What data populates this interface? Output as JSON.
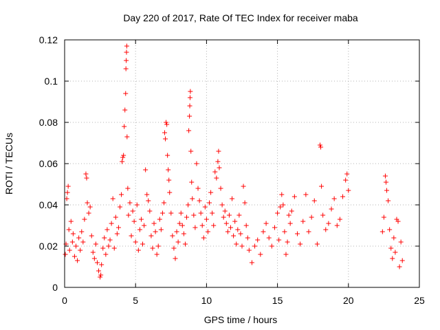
{
  "chart_data": {
    "type": "scatter",
    "title": "Day 220 of 2017, Rate Of TEC Index for receiver maba",
    "xlabel": "GPS time / hours",
    "ylabel": "ROTI / TECUs",
    "xlim": [
      0,
      25
    ],
    "ylim": [
      0,
      0.12
    ],
    "xticks": [
      "0",
      "5",
      "10",
      "15",
      "20",
      "25"
    ],
    "yticks": [
      "0",
      "0.02",
      "0.04",
      "0.06",
      "0.08",
      "0.1",
      "0.12"
    ],
    "grid": true,
    "marker": "+",
    "marker_color": "#ff0000",
    "series": [
      {
        "points": [
          [
            0.05,
            0.016
          ],
          [
            0.1,
            0.021
          ],
          [
            0.15,
            0.043
          ],
          [
            0.2,
            0.046
          ],
          [
            0.25,
            0.049
          ],
          [
            0.3,
            0.028
          ],
          [
            0.35,
            0.018
          ],
          [
            0.45,
            0.032
          ],
          [
            0.55,
            0.022
          ],
          [
            0.6,
            0.026
          ],
          [
            0.7,
            0.015
          ],
          [
            0.8,
            0.02
          ],
          [
            0.9,
            0.013
          ],
          [
            1.0,
            0.024
          ],
          [
            1.1,
            0.018
          ],
          [
            1.2,
            0.027
          ],
          [
            1.3,
            0.022
          ],
          [
            1.4,
            0.033
          ],
          [
            1.5,
            0.055
          ],
          [
            1.55,
            0.053
          ],
          [
            1.6,
            0.041
          ],
          [
            1.7,
            0.036
          ],
          [
            1.8,
            0.039
          ],
          [
            1.9,
            0.025
          ],
          [
            2.0,
            0.017
          ],
          [
            2.1,
            0.014
          ],
          [
            2.2,
            0.021
          ],
          [
            2.3,
            0.012
          ],
          [
            2.4,
            0.008
          ],
          [
            2.5,
            0.005
          ],
          [
            2.55,
            0.006
          ],
          [
            2.6,
            0.011
          ],
          [
            2.7,
            0.019
          ],
          [
            2.8,
            0.024
          ],
          [
            2.9,
            0.016
          ],
          [
            3.0,
            0.028
          ],
          [
            3.1,
            0.02
          ],
          [
            3.2,
            0.023
          ],
          [
            3.3,
            0.031
          ],
          [
            3.4,
            0.043
          ],
          [
            3.5,
            0.019
          ],
          [
            3.6,
            0.034
          ],
          [
            3.7,
            0.026
          ],
          [
            3.8,
            0.029
          ],
          [
            3.9,
            0.039
          ],
          [
            4.0,
            0.045
          ],
          [
            4.05,
            0.061
          ],
          [
            4.1,
            0.063
          ],
          [
            4.15,
            0.064
          ],
          [
            4.2,
            0.078
          ],
          [
            4.25,
            0.086
          ],
          [
            4.3,
            0.094
          ],
          [
            4.32,
            0.106
          ],
          [
            4.34,
            0.11
          ],
          [
            4.36,
            0.114
          ],
          [
            4.38,
            0.117
          ],
          [
            4.4,
            0.073
          ],
          [
            4.45,
            0.048
          ],
          [
            4.5,
            0.035
          ],
          [
            4.6,
            0.041
          ],
          [
            4.7,
            0.025
          ],
          [
            4.8,
            0.037
          ],
          [
            4.9,
            0.032
          ],
          [
            5.0,
            0.022
          ],
          [
            5.1,
            0.04
          ],
          [
            5.2,
            0.018
          ],
          [
            5.3,
            0.028
          ],
          [
            5.4,
            0.033
          ],
          [
            5.5,
            0.021
          ],
          [
            5.6,
            0.03
          ],
          [
            5.7,
            0.057
          ],
          [
            5.8,
            0.045
          ],
          [
            5.9,
            0.042
          ],
          [
            6.0,
            0.037
          ],
          [
            6.1,
            0.025
          ],
          [
            6.2,
            0.019
          ],
          [
            6.3,
            0.031
          ],
          [
            6.4,
            0.027
          ],
          [
            6.5,
            0.016
          ],
          [
            6.6,
            0.02
          ],
          [
            6.7,
            0.033
          ],
          [
            6.8,
            0.028
          ],
          [
            6.9,
            0.036
          ],
          [
            7.0,
            0.041
          ],
          [
            7.05,
            0.075
          ],
          [
            7.1,
            0.072
          ],
          [
            7.15,
            0.08
          ],
          [
            7.2,
            0.079
          ],
          [
            7.25,
            0.064
          ],
          [
            7.3,
            0.057
          ],
          [
            7.35,
            0.052
          ],
          [
            7.4,
            0.046
          ],
          [
            7.5,
            0.036
          ],
          [
            7.6,
            0.025
          ],
          [
            7.7,
            0.019
          ],
          [
            7.8,
            0.014
          ],
          [
            7.9,
            0.027
          ],
          [
            8.0,
            0.022
          ],
          [
            8.1,
            0.031
          ],
          [
            8.2,
            0.036
          ],
          [
            8.3,
            0.03
          ],
          [
            8.4,
            0.026
          ],
          [
            8.5,
            0.021
          ],
          [
            8.6,
            0.034
          ],
          [
            8.7,
            0.04
          ],
          [
            8.75,
            0.076
          ],
          [
            8.8,
            0.083
          ],
          [
            8.82,
            0.088
          ],
          [
            8.84,
            0.092
          ],
          [
            8.86,
            0.095
          ],
          [
            8.9,
            0.066
          ],
          [
            8.95,
            0.051
          ],
          [
            9.0,
            0.043
          ],
          [
            9.1,
            0.035
          ],
          [
            9.2,
            0.029
          ],
          [
            9.3,
            0.06
          ],
          [
            9.4,
            0.048
          ],
          [
            9.5,
            0.042
          ],
          [
            9.6,
            0.036
          ],
          [
            9.7,
            0.03
          ],
          [
            9.8,
            0.024
          ],
          [
            9.9,
            0.039
          ],
          [
            10.0,
            0.033
          ],
          [
            10.1,
            0.027
          ],
          [
            10.2,
            0.041
          ],
          [
            10.3,
            0.046
          ],
          [
            10.4,
            0.036
          ],
          [
            10.5,
            0.03
          ],
          [
            10.6,
            0.056
          ],
          [
            10.7,
            0.053
          ],
          [
            10.8,
            0.061
          ],
          [
            10.85,
            0.066
          ],
          [
            10.9,
            0.058
          ],
          [
            11.0,
            0.048
          ],
          [
            11.1,
            0.04
          ],
          [
            11.2,
            0.034
          ],
          [
            11.3,
            0.037
          ],
          [
            11.4,
            0.031
          ],
          [
            11.5,
            0.027
          ],
          [
            11.6,
            0.035
          ],
          [
            11.7,
            0.029
          ],
          [
            11.8,
            0.043
          ],
          [
            11.9,
            0.025
          ],
          [
            12.0,
            0.032
          ],
          [
            12.1,
            0.021
          ],
          [
            12.2,
            0.028
          ],
          [
            12.3,
            0.035
          ],
          [
            12.4,
            0.026
          ],
          [
            12.5,
            0.02
          ],
          [
            12.6,
            0.049
          ],
          [
            12.7,
            0.041
          ],
          [
            12.8,
            0.03
          ],
          [
            12.9,
            0.024
          ],
          [
            13.0,
            0.018
          ],
          [
            13.2,
            0.012
          ],
          [
            13.4,
            0.02
          ],
          [
            13.6,
            0.023
          ],
          [
            13.8,
            0.016
          ],
          [
            14.0,
            0.027
          ],
          [
            14.2,
            0.031
          ],
          [
            14.4,
            0.024
          ],
          [
            14.6,
            0.02
          ],
          [
            14.8,
            0.029
          ],
          [
            15.0,
            0.036
          ],
          [
            15.1,
            0.023
          ],
          [
            15.2,
            0.039
          ],
          [
            15.3,
            0.045
          ],
          [
            15.4,
            0.04
          ],
          [
            15.5,
            0.027
          ],
          [
            15.6,
            0.016
          ],
          [
            15.7,
            0.022
          ],
          [
            15.8,
            0.035
          ],
          [
            15.9,
            0.031
          ],
          [
            16.0,
            0.037
          ],
          [
            16.2,
            0.044
          ],
          [
            16.4,
            0.026
          ],
          [
            16.6,
            0.021
          ],
          [
            16.8,
            0.032
          ],
          [
            17.0,
            0.045
          ],
          [
            17.2,
            0.027
          ],
          [
            17.4,
            0.034
          ],
          [
            17.6,
            0.042
          ],
          [
            17.8,
            0.021
          ],
          [
            18.0,
            0.069
          ],
          [
            18.05,
            0.068
          ],
          [
            18.1,
            0.049
          ],
          [
            18.2,
            0.035
          ],
          [
            18.4,
            0.028
          ],
          [
            18.6,
            0.031
          ],
          [
            18.8,
            0.038
          ],
          [
            19.0,
            0.043
          ],
          [
            19.2,
            0.03
          ],
          [
            19.4,
            0.033
          ],
          [
            19.6,
            0.044
          ],
          [
            19.8,
            0.052
          ],
          [
            19.9,
            0.055
          ],
          [
            20.0,
            0.047
          ],
          [
            22.4,
            0.027
          ],
          [
            22.5,
            0.034
          ],
          [
            22.6,
            0.054
          ],
          [
            22.65,
            0.051
          ],
          [
            22.7,
            0.047
          ],
          [
            22.8,
            0.042
          ],
          [
            22.9,
            0.028
          ],
          [
            23.0,
            0.019
          ],
          [
            23.1,
            0.014
          ],
          [
            23.2,
            0.024
          ],
          [
            23.3,
            0.017
          ],
          [
            23.4,
            0.033
          ],
          [
            23.5,
            0.032
          ],
          [
            23.6,
            0.01
          ],
          [
            23.7,
            0.022
          ],
          [
            23.8,
            0.013
          ]
        ]
      }
    ]
  }
}
